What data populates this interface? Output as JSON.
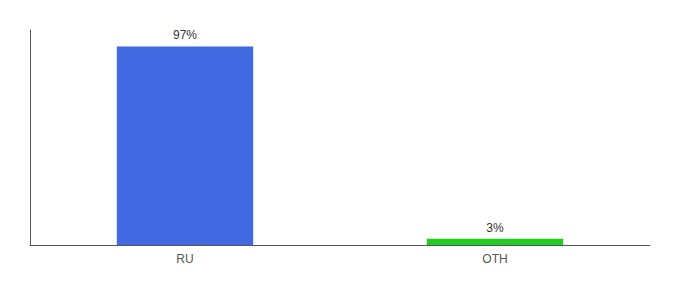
{
  "chart_data": {
    "type": "bar",
    "categories": [
      "RU",
      "OTH"
    ],
    "values": [
      97,
      3
    ],
    "value_labels": [
      "97%",
      "3%"
    ],
    "data_labels": true,
    "colors": [
      "#4169e1",
      "#22cc22"
    ],
    "ylim": [
      0,
      105
    ],
    "grid": false,
    "tick_labels": "x"
  }
}
